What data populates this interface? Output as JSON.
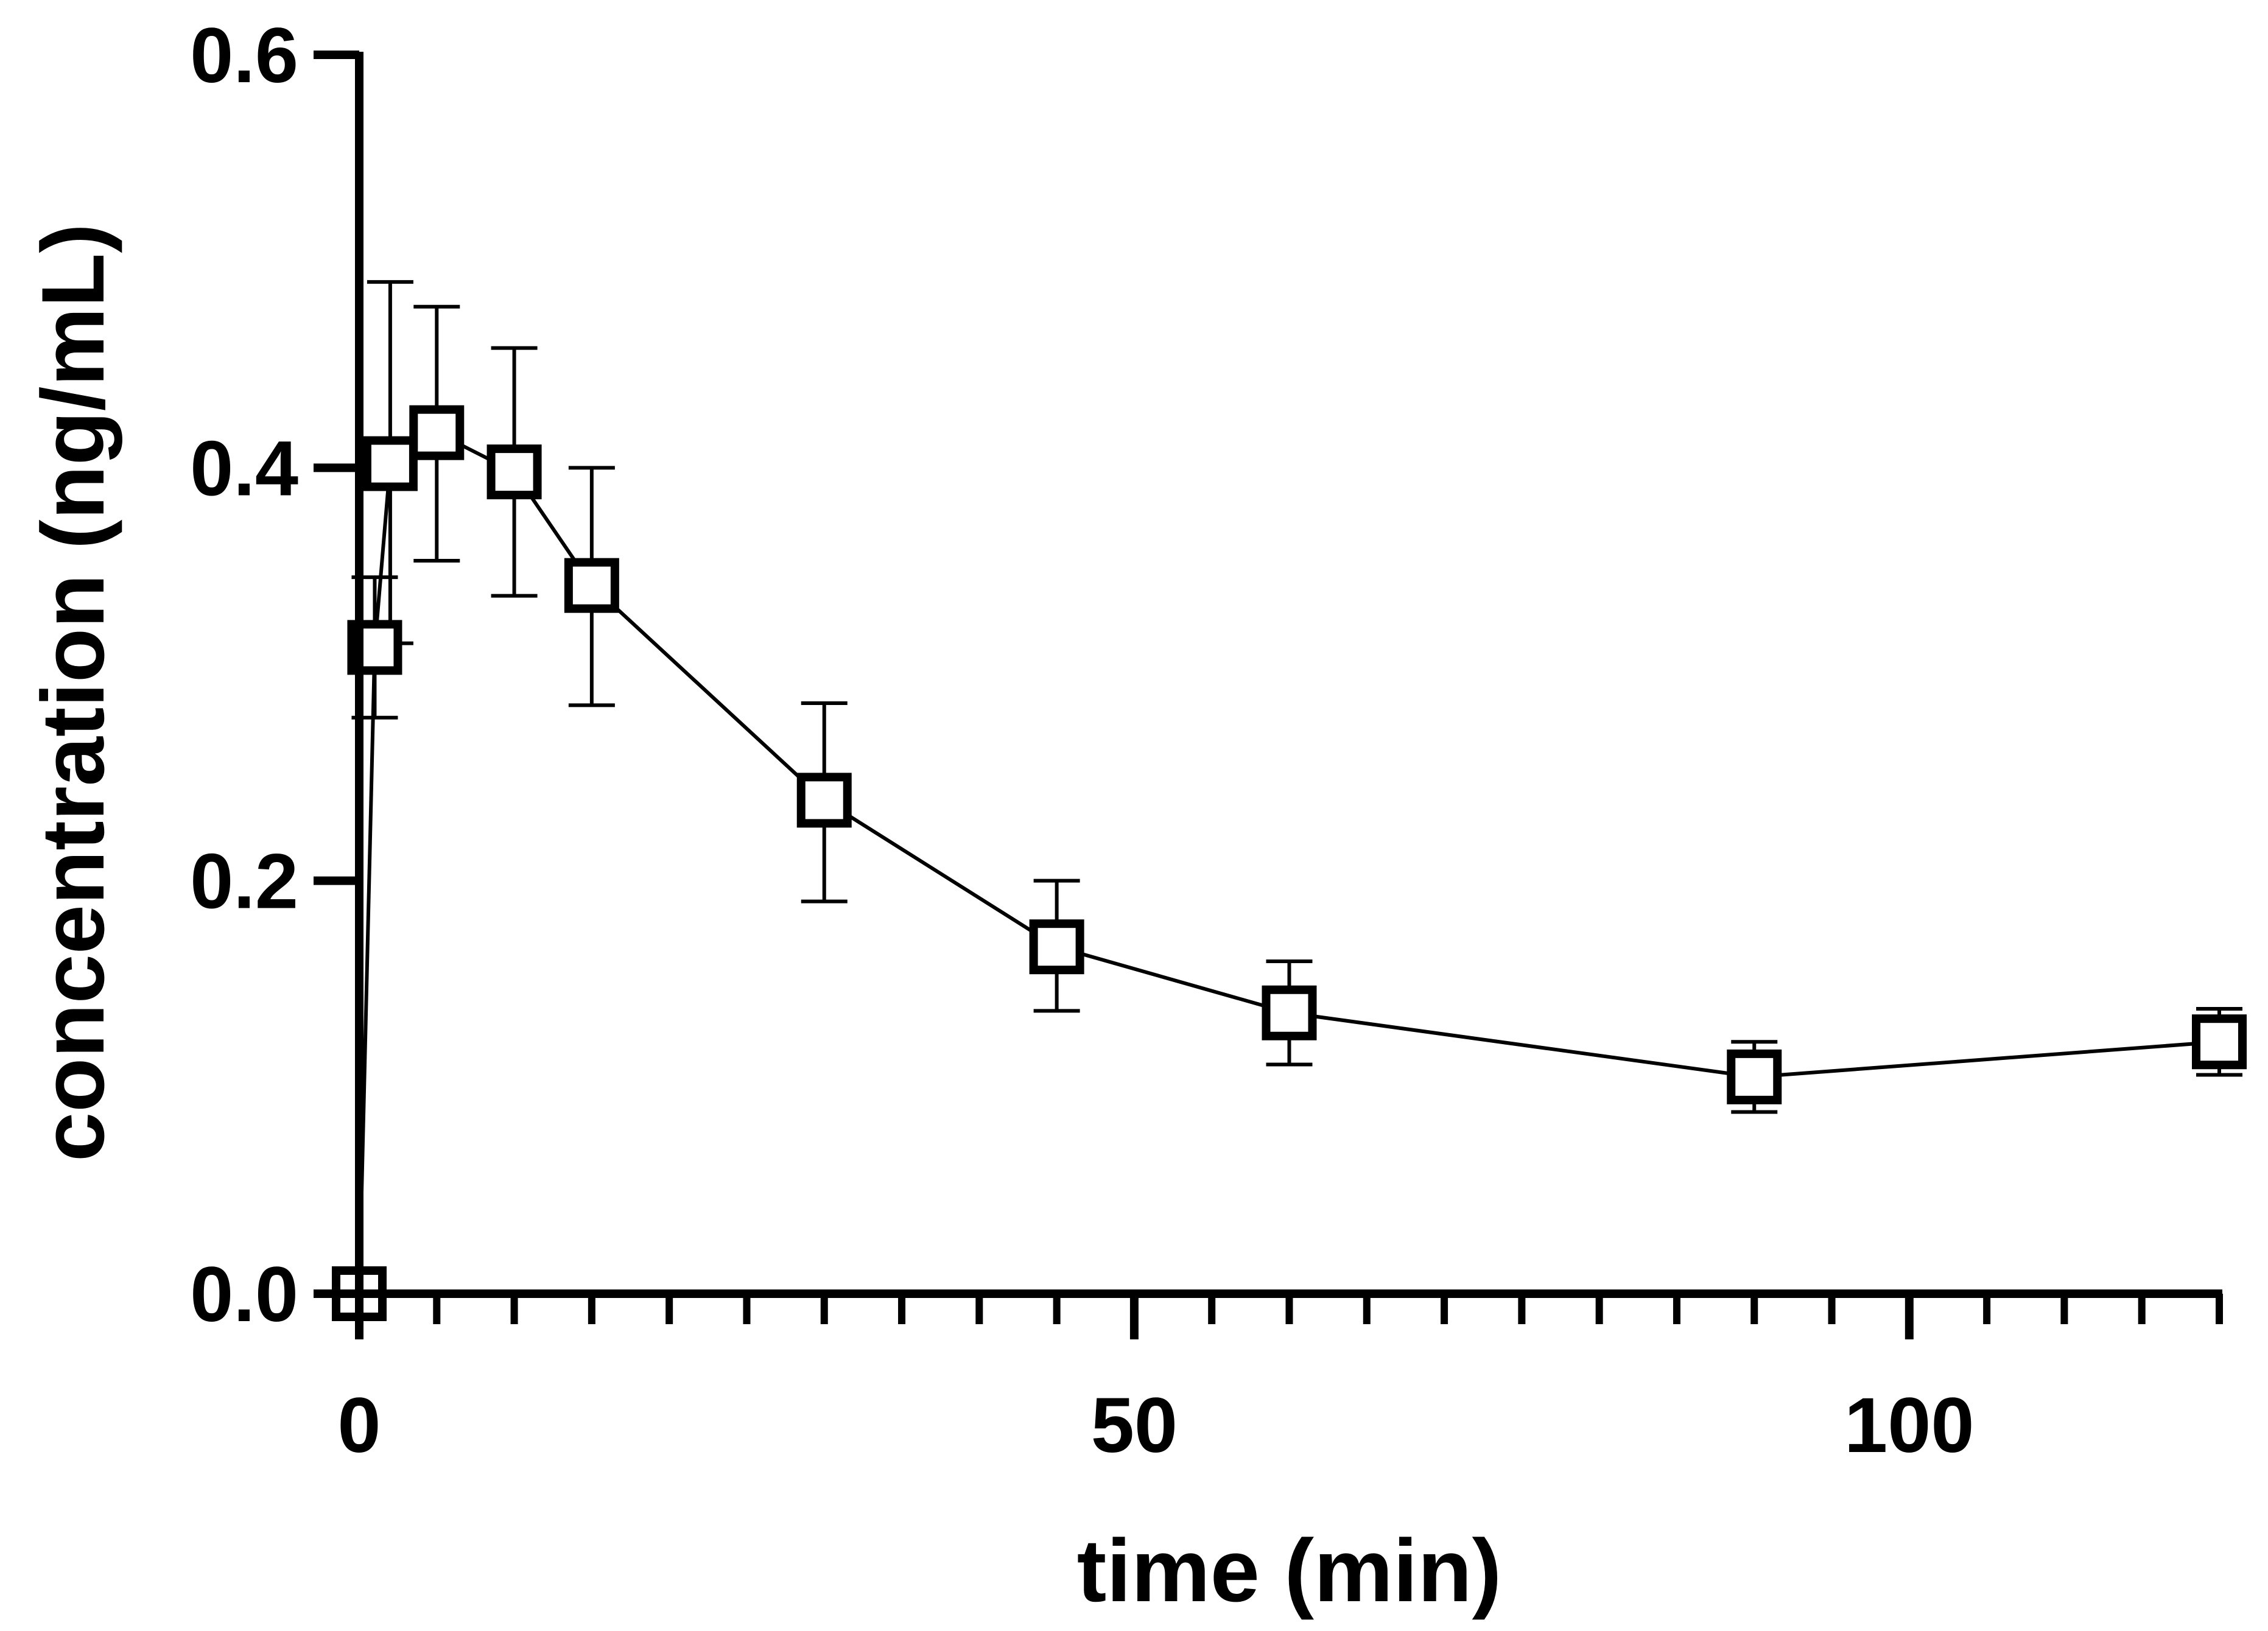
{
  "chart_data": {
    "type": "line",
    "title": "",
    "xlabel": "time (min)",
    "ylabel": "concentration (ng/mL)",
    "xlim": [
      0,
      120
    ],
    "ylim": [
      0,
      0.6
    ],
    "x_ticks": [
      0,
      50,
      100
    ],
    "x_tick_labels": [
      "0",
      "50",
      "100"
    ],
    "x_minor_step": 5,
    "y_ticks": [
      0.0,
      0.2,
      0.4,
      0.6
    ],
    "y_tick_labels": [
      "0.0",
      "0.2",
      "0.4",
      "0.6"
    ],
    "grid": false,
    "legend": false,
    "series": [
      {
        "name": "concentration",
        "marker": "open-square",
        "color": "#000000",
        "x": [
          0,
          1,
          2,
          5,
          10,
          15,
          30,
          45,
          60,
          90,
          120
        ],
        "y": [
          0.0,
          0.313,
          0.402,
          0.417,
          0.398,
          0.343,
          0.239,
          0.168,
          0.136,
          0.105,
          0.122
        ],
        "err_low": [
          0.0,
          0.279,
          0.315,
          0.355,
          0.338,
          0.285,
          0.19,
          0.137,
          0.111,
          0.088,
          0.106
        ],
        "err_high": [
          0.0,
          0.347,
          0.49,
          0.478,
          0.458,
          0.4,
          0.286,
          0.2,
          0.161,
          0.122,
          0.138
        ]
      }
    ]
  }
}
